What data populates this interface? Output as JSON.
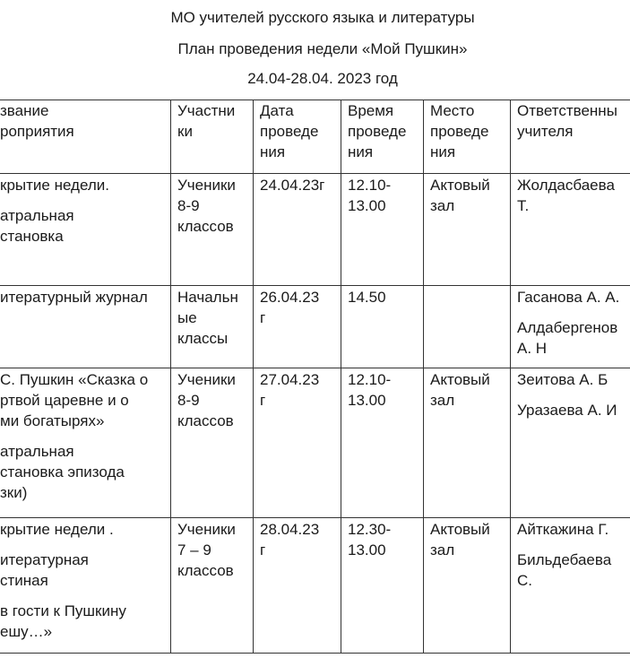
{
  "header": {
    "lines": [
      "МО учителей  русского языка и литературы",
      "План проведения недели  «Мой Пушкин»",
      "24.04-28.04. 2023 год"
    ]
  },
  "table": {
    "columns": [
      [
        "звание",
        "роприятия"
      ],
      [
        "Участни",
        "ки"
      ],
      [
        "Дата",
        "проведе",
        "ния"
      ],
      [
        "Время",
        "проведе",
        "ния"
      ],
      [
        "Место",
        "проведе",
        "ния"
      ],
      [
        "Ответственны",
        "учителя"
      ]
    ],
    "rows": [
      [
        [
          [
            "крытие недели."
          ],
          [
            "атральная",
            "становка"
          ]
        ],
        [
          [
            "Ученики",
            "8-9",
            "классов"
          ]
        ],
        [
          [
            "24.04.23г"
          ]
        ],
        [
          [
            "12.10-",
            "13.00"
          ]
        ],
        [
          [
            "Актовый",
            "зал"
          ]
        ],
        [
          [
            "Жолдасбаева",
            "Т."
          ]
        ]
      ],
      [
        [
          [
            "итературный журнал"
          ]
        ],
        [
          [
            "Начальн",
            "ые",
            "классы"
          ]
        ],
        [
          [
            "26.04.23",
            "г"
          ]
        ],
        [
          [
            "14.50"
          ]
        ],
        [],
        [
          [
            "Гасанова А. А."
          ],
          [
            "Алдабергенов",
            "А. Н"
          ]
        ]
      ],
      [
        [
          [
            "С. Пушкин «Сказка о",
            "ртвой царевне и  о",
            "ми богатырях»"
          ],
          [
            "атральная",
            "становка эпизода",
            "зки)"
          ]
        ],
        [
          [
            "Ученики",
            "8-9",
            "классов"
          ]
        ],
        [
          [
            "27.04.23",
            "г"
          ]
        ],
        [
          [
            "12.10-",
            "13.00"
          ]
        ],
        [
          [
            "Актовый",
            "зал"
          ]
        ],
        [
          [
            "Зеитова А. Б"
          ],
          [
            "Уразаева А. И"
          ]
        ]
      ],
      [
        [
          [
            "крытие недели ."
          ],
          [
            "итературная",
            "стиная"
          ],
          [
            "в гости к Пушкину",
            "ешу…»"
          ]
        ],
        [
          [
            "Ученики",
            "7 – 9",
            "классов"
          ]
        ],
        [
          [
            "28.04.23",
            "г"
          ]
        ],
        [
          [
            "12.30-",
            "13.00"
          ]
        ],
        [
          [
            "Актовый",
            "зал"
          ]
        ],
        [
          [
            "Айткажина Г."
          ],
          [
            "Бильдебаева",
            "С."
          ]
        ]
      ]
    ]
  }
}
